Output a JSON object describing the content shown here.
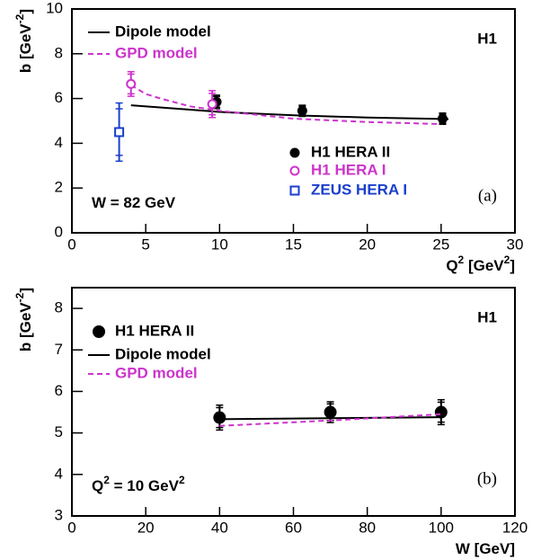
{
  "chart_data": [
    {
      "type": "line",
      "xlim": [
        0,
        30
      ],
      "ylim": [
        0,
        10
      ],
      "xticks": [
        0,
        5,
        10,
        15,
        20,
        25,
        30
      ],
      "yticks": [
        0,
        2,
        4,
        6,
        8,
        10
      ],
      "xlabel": [
        "Q",
        "2",
        " [GeV",
        "2",
        "]"
      ],
      "ylabel": [
        "b [GeV",
        "-2",
        "]"
      ],
      "experiment": "H1",
      "panel": "(a)",
      "note": [
        "W = 82 GeV"
      ],
      "series": [
        {
          "name": "Dipole model",
          "color": "#000000",
          "dashed": false,
          "x": [
            4,
            8,
            10,
            15,
            20,
            25.5
          ],
          "values": [
            5.7,
            5.5,
            5.4,
            5.25,
            5.15,
            5.08
          ]
        },
        {
          "name": "GPD model",
          "color": "#cc33cc",
          "dashed": true,
          "x": [
            4,
            5,
            6,
            8,
            10,
            15,
            20,
            25.5
          ],
          "values": [
            6.6,
            6.2,
            6.0,
            5.65,
            5.45,
            5.1,
            4.95,
            4.85
          ]
        },
        {
          "name": "H1 HERA II",
          "color": "#000000",
          "marker": "filled-circle",
          "x": [
            9.8,
            15.6,
            25.1
          ],
          "values": [
            5.85,
            5.45,
            5.1
          ],
          "errors": [
            0.3,
            0.25,
            0.25
          ]
        },
        {
          "name": "H1 HERA I",
          "color": "#cc33cc",
          "marker": "open-circle",
          "x": [
            4.0,
            9.5
          ],
          "values": [
            6.65,
            5.75
          ],
          "errors": [
            0.55,
            0.6
          ]
        },
        {
          "name": "ZEUS HERA I",
          "color": "#1a3fcc",
          "marker": "open-square",
          "x": [
            3.2
          ],
          "values": [
            4.5
          ],
          "errors": [
            1.3
          ]
        }
      ]
    },
    {
      "type": "line",
      "xlim": [
        0,
        120
      ],
      "ylim": [
        3,
        8.5
      ],
      "xticks": [
        0,
        20,
        40,
        60,
        80,
        100,
        120
      ],
      "yticks": [
        3,
        4,
        5,
        6,
        7,
        8
      ],
      "xlabel": [
        "W [GeV]"
      ],
      "ylabel": [
        "b [GeV",
        "-2",
        "]"
      ],
      "experiment": "H1",
      "panel": "(b)",
      "note": [
        "Q",
        "2",
        " = 10 GeV",
        "2"
      ],
      "series": [
        {
          "name": "H1 HERA II",
          "color": "#000000",
          "marker": "filled-circle",
          "x": [
            40,
            70,
            100
          ],
          "values": [
            5.37,
            5.5,
            5.5
          ],
          "errors": [
            0.3,
            0.25,
            0.3
          ]
        },
        {
          "name": "Dipole model",
          "color": "#000000",
          "dashed": false,
          "x": [
            40,
            100
          ],
          "values": [
            5.33,
            5.38
          ]
        },
        {
          "name": "GPD model",
          "color": "#cc33cc",
          "dashed": true,
          "x": [
            40,
            70,
            100
          ],
          "values": [
            5.17,
            5.3,
            5.45
          ]
        }
      ]
    }
  ]
}
